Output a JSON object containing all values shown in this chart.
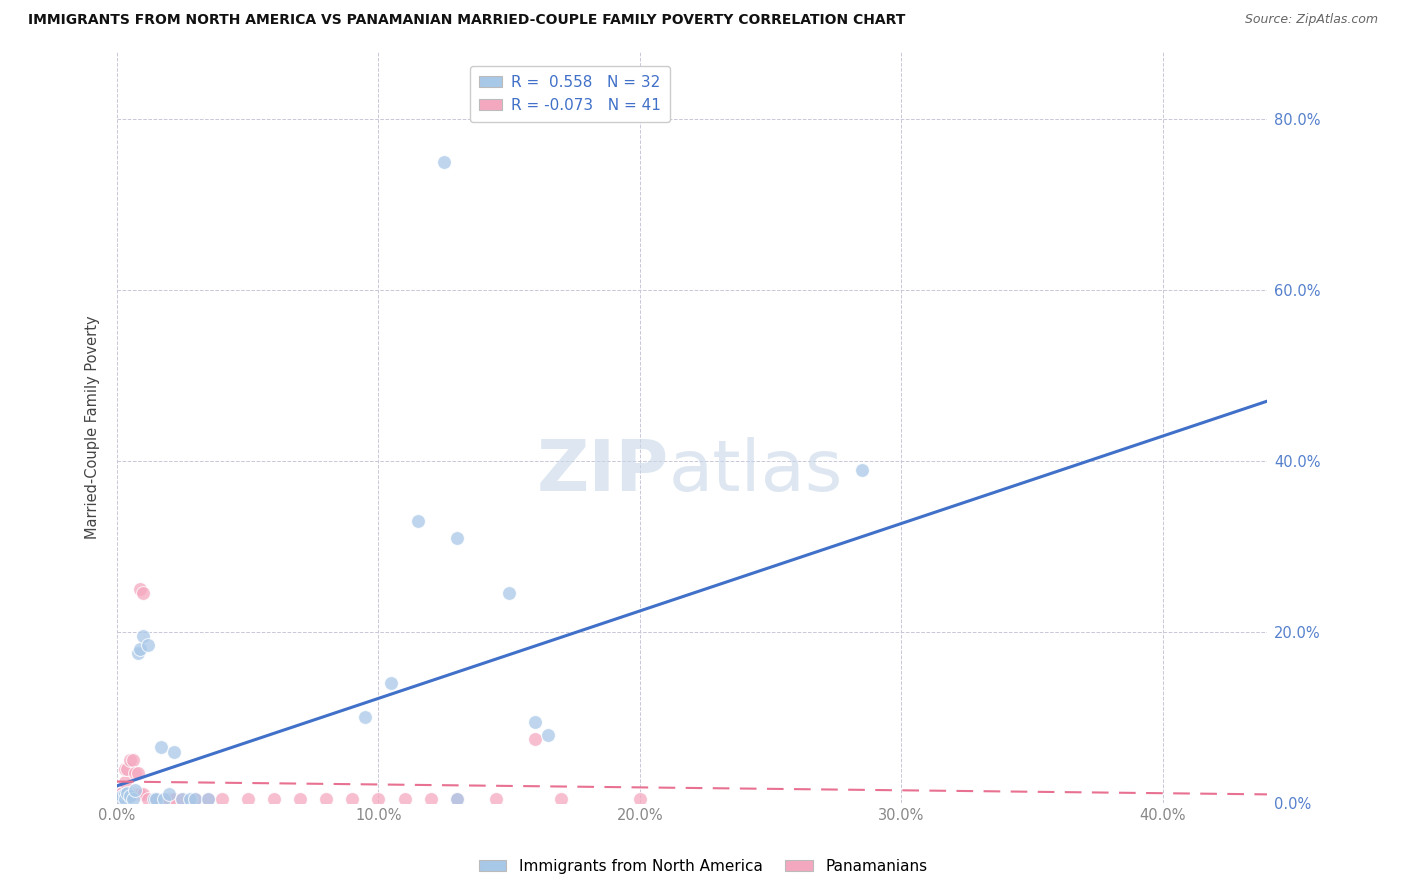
{
  "title": "IMMIGRANTS FROM NORTH AMERICA VS PANAMANIAN MARRIED-COUPLE FAMILY POVERTY CORRELATION CHART",
  "source": "Source: ZipAtlas.com",
  "xlabel_ticks": [
    "0.0%",
    "10.0%",
    "20.0%",
    "30.0%",
    "40.0%"
  ],
  "ylabel_label": "Married-Couple Family Poverty",
  "ylabel_right_ticks": [
    "0.0%",
    "20.0%",
    "40.0%",
    "60.0%",
    "80.0%"
  ],
  "xlim": [
    0.0,
    0.44
  ],
  "ylim": [
    0.0,
    0.88
  ],
  "legend_labels": [
    "Immigrants from North America",
    "Panamanians"
  ],
  "blue_scatter": [
    [
      0.001,
      0.005
    ],
    [
      0.002,
      0.008
    ],
    [
      0.003,
      0.01
    ],
    [
      0.003,
      0.005
    ],
    [
      0.004,
      0.012
    ],
    [
      0.005,
      0.008
    ],
    [
      0.006,
      0.005
    ],
    [
      0.007,
      0.015
    ],
    [
      0.008,
      0.175
    ],
    [
      0.009,
      0.18
    ],
    [
      0.01,
      0.195
    ],
    [
      0.012,
      0.185
    ],
    [
      0.014,
      0.005
    ],
    [
      0.015,
      0.005
    ],
    [
      0.017,
      0.065
    ],
    [
      0.018,
      0.005
    ],
    [
      0.02,
      0.01
    ],
    [
      0.022,
      0.06
    ],
    [
      0.025,
      0.005
    ],
    [
      0.028,
      0.005
    ],
    [
      0.03,
      0.005
    ],
    [
      0.035,
      0.005
    ],
    [
      0.095,
      0.1
    ],
    [
      0.105,
      0.14
    ],
    [
      0.115,
      0.33
    ],
    [
      0.13,
      0.31
    ],
    [
      0.15,
      0.245
    ],
    [
      0.16,
      0.095
    ],
    [
      0.165,
      0.08
    ],
    [
      0.285,
      0.39
    ],
    [
      0.125,
      0.75
    ],
    [
      0.13,
      0.005
    ]
  ],
  "pink_scatter": [
    [
      0.001,
      0.01
    ],
    [
      0.002,
      0.005
    ],
    [
      0.002,
      0.012
    ],
    [
      0.003,
      0.025
    ],
    [
      0.003,
      0.04
    ],
    [
      0.004,
      0.01
    ],
    [
      0.004,
      0.04
    ],
    [
      0.005,
      0.012
    ],
    [
      0.005,
      0.05
    ],
    [
      0.006,
      0.01
    ],
    [
      0.006,
      0.05
    ],
    [
      0.007,
      0.01
    ],
    [
      0.007,
      0.035
    ],
    [
      0.008,
      0.01
    ],
    [
      0.008,
      0.035
    ],
    [
      0.009,
      0.01
    ],
    [
      0.009,
      0.25
    ],
    [
      0.01,
      0.01
    ],
    [
      0.01,
      0.245
    ],
    [
      0.012,
      0.005
    ],
    [
      0.015,
      0.005
    ],
    [
      0.018,
      0.005
    ],
    [
      0.02,
      0.005
    ],
    [
      0.022,
      0.005
    ],
    [
      0.025,
      0.005
    ],
    [
      0.03,
      0.005
    ],
    [
      0.035,
      0.005
    ],
    [
      0.04,
      0.005
    ],
    [
      0.05,
      0.005
    ],
    [
      0.06,
      0.005
    ],
    [
      0.07,
      0.005
    ],
    [
      0.08,
      0.005
    ],
    [
      0.09,
      0.005
    ],
    [
      0.1,
      0.005
    ],
    [
      0.11,
      0.005
    ],
    [
      0.12,
      0.005
    ],
    [
      0.13,
      0.005
    ],
    [
      0.145,
      0.005
    ],
    [
      0.16,
      0.075
    ],
    [
      0.17,
      0.005
    ],
    [
      0.2,
      0.005
    ]
  ],
  "blue_line_x": [
    0.0,
    0.44
  ],
  "blue_line_y": [
    0.02,
    0.47
  ],
  "pink_line_x": [
    0.0,
    0.44
  ],
  "pink_line_y": [
    0.025,
    0.01
  ],
  "scatter_size": 100,
  "blue_color": "#a8c8e8",
  "pink_color": "#f4a8c0",
  "blue_line_color": "#4070c8",
  "pink_line_color": "#e87090",
  "watermark_zip": "ZIP",
  "watermark_atlas": "atlas",
  "background_color": "#ffffff",
  "grid_color": "#c8c8d8"
}
